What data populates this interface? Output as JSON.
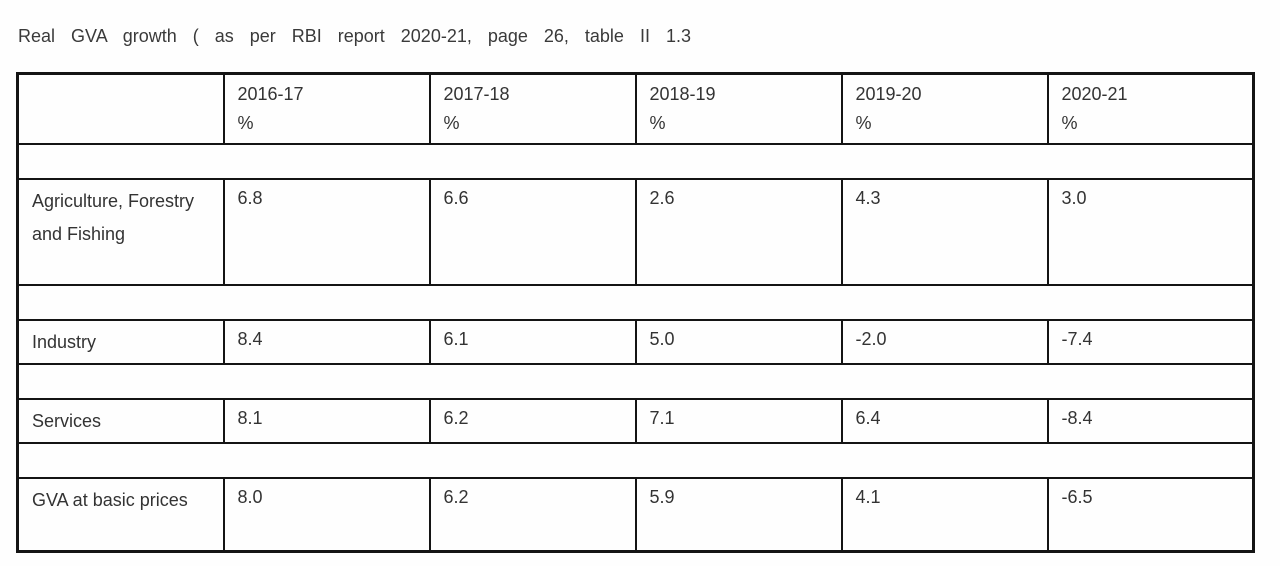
{
  "page": {
    "title": "Real GVA growth ( as per RBI report 2020-21, page 26, table II 1.3"
  },
  "table": {
    "columns": [
      {
        "label": "",
        "unit": ""
      },
      {
        "label": "2016-17",
        "unit": "%"
      },
      {
        "label": "2017-18",
        "unit": "%"
      },
      {
        "label": "2018-19",
        "unit": "%"
      },
      {
        "label": "2019-20",
        "unit": "%"
      },
      {
        "label": "2020-21",
        "unit": "%"
      }
    ],
    "rows": [
      {
        "label": "Agriculture, Forestry and Fishing",
        "values": [
          "6.8",
          "6.6",
          "2.6",
          "4.3",
          "3.0"
        ]
      },
      {
        "label": "Industry",
        "values": [
          "8.4",
          "6.1",
          "5.0",
          "-2.0",
          "-7.4"
        ]
      },
      {
        "label": "Services",
        "values": [
          "8.1",
          "6.2",
          "7.1",
          "6.4",
          "-8.4"
        ]
      },
      {
        "label": "GVA at basic prices",
        "values": [
          "8.0",
          "6.2",
          "5.9",
          "4.1",
          "-6.5"
        ]
      }
    ]
  },
  "chart_data": {
    "type": "table",
    "title": "Real GVA growth ( as per RBI report 2020-21, page 26, table II 1.3",
    "categories": [
      "2016-17 %",
      "2017-18 %",
      "2018-19 %",
      "2019-20 %",
      "2020-21 %"
    ],
    "series": [
      {
        "name": "Agriculture, Forestry and Fishing",
        "values": [
          6.8,
          6.6,
          2.6,
          4.3,
          3.0
        ]
      },
      {
        "name": "Industry",
        "values": [
          8.4,
          6.1,
          5.0,
          -2.0,
          -7.4
        ]
      },
      {
        "name": "Services",
        "values": [
          8.1,
          6.2,
          7.1,
          6.4,
          -8.4
        ]
      },
      {
        "name": "GVA at basic prices",
        "values": [
          8.0,
          6.2,
          5.9,
          4.1,
          -6.5
        ]
      }
    ]
  },
  "colors": {
    "border": "#141414",
    "text": "#333333",
    "background": "#ffffff"
  }
}
